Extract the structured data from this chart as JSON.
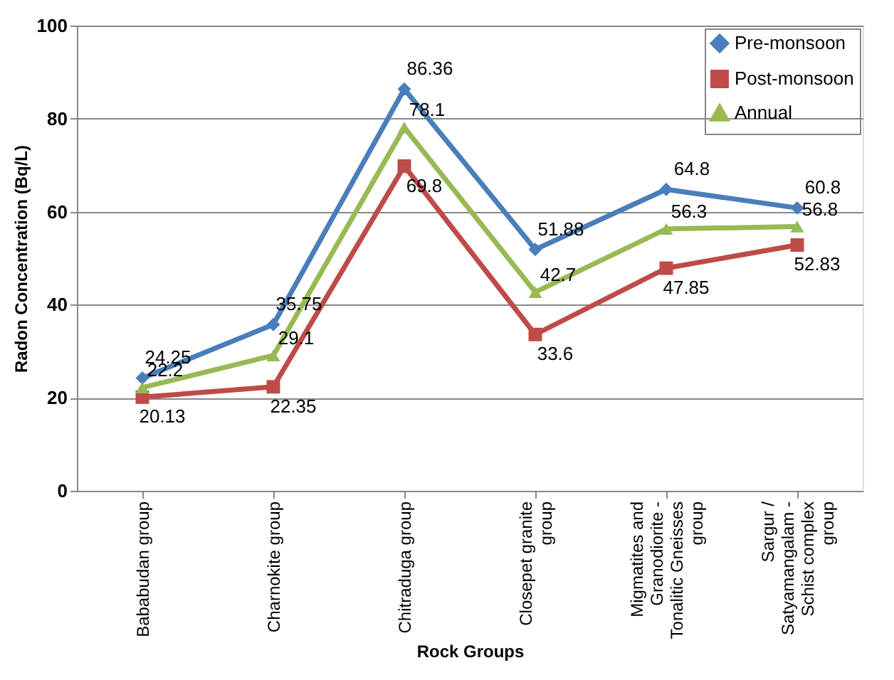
{
  "chart_data": {
    "type": "line",
    "xlabel": "Rock Groups",
    "ylabel": "Radon Concentration (Bq/L)",
    "categories": [
      "Bababudan group",
      "Charnokite group",
      "Chitraduga group",
      "Closepet granite group",
      "Migmatites and Granodiorite - Tonalitic Gneisses group",
      "Sargur / Satyamangalam - Schist complex group"
    ],
    "series": [
      {
        "name": "Pre-monsoon",
        "color": "#4a7ebb",
        "marker": "diamond",
        "values": [
          24.25,
          35.75,
          86.36,
          51.88,
          64.8,
          60.8
        ]
      },
      {
        "name": "Post-monsoon",
        "color": "#be4b48",
        "marker": "square",
        "values": [
          20.13,
          22.35,
          69.8,
          33.6,
          47.85,
          52.83
        ]
      },
      {
        "name": "Annual",
        "color": "#98b954",
        "marker": "triangle",
        "values": [
          22.2,
          29.1,
          78.1,
          42.7,
          56.3,
          56.8
        ]
      }
    ],
    "ylim": [
      0,
      100
    ],
    "yticks": [
      0,
      20,
      40,
      60,
      80,
      100
    ],
    "grid": "y",
    "legend": "top right",
    "data_labels": true,
    "line_style": "solid"
  }
}
